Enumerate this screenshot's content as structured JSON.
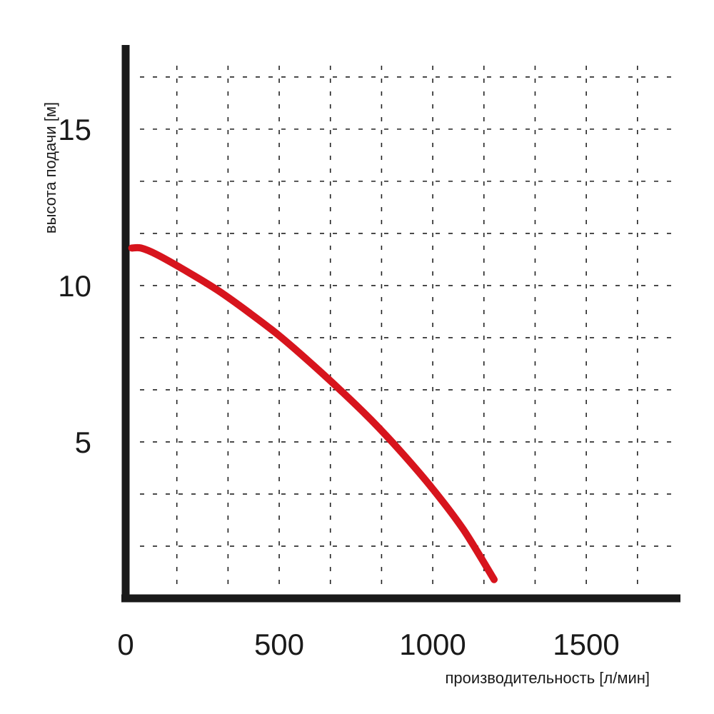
{
  "chart_data": {
    "type": "line",
    "title": "",
    "xlabel": "производительность [л/мин]",
    "ylabel": "высота подачи [м]",
    "xlim": [
      0,
      1800
    ],
    "ylim": [
      0,
      17.9
    ],
    "x_ticks": [
      "0",
      "500",
      "1000",
      "1500"
    ],
    "y_ticks": [
      "5",
      "10",
      "15"
    ],
    "grid": true,
    "series": [
      {
        "color": "#d7141d",
        "x": [
          20,
          50,
          100,
          200,
          300,
          400,
          500,
          600,
          700,
          800,
          900,
          1000,
          1100,
          1200
        ],
        "y": [
          11.2,
          11.2,
          11.0,
          10.45,
          9.85,
          9.15,
          8.4,
          7.55,
          6.65,
          5.7,
          4.65,
          3.5,
          2.2,
          0.6
        ]
      }
    ]
  }
}
